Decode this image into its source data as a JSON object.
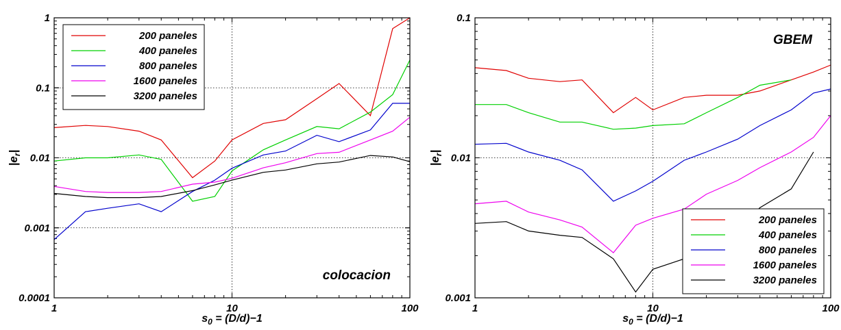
{
  "chart_data": [
    {
      "type": "line",
      "xscale": "log",
      "yscale": "log",
      "xlim": [
        1,
        100
      ],
      "ylim": [
        0.0001,
        1
      ],
      "xlabel": "s",
      "xlabel_sub": "0",
      "xlabel_rest": " = (D/d)−1",
      "ylabel": "|e",
      "ylabel_sub": "r",
      "ylabel_end": "|",
      "x_ticks": [
        "1",
        "10",
        "100"
      ],
      "y_ticks": [
        "0.0001",
        "0.001",
        "0.01",
        "0.1",
        "1"
      ],
      "grid": "dotted at decades",
      "legend_position": "top-left",
      "annotation": "colocacion",
      "x": [
        1,
        1.5,
        2,
        3,
        4,
        6,
        8,
        10,
        15,
        20,
        30,
        40,
        60,
        80,
        100
      ],
      "series": [
        {
          "name": "200 paneles",
          "color": "#e00000",
          "values": [
            0.027,
            0.029,
            0.028,
            0.024,
            0.018,
            0.0052,
            0.009,
            0.018,
            0.031,
            0.035,
            0.07,
            0.115,
            0.04,
            0.7,
            1.0
          ]
        },
        {
          "name": "400 paneles",
          "color": "#00d000",
          "values": [
            0.009,
            0.01,
            0.01,
            0.011,
            0.0095,
            0.0024,
            0.0028,
            0.0065,
            0.013,
            0.018,
            0.028,
            0.026,
            0.045,
            0.08,
            0.25
          ]
        },
        {
          "name": "800 paneles",
          "color": "#0000cc",
          "values": [
            0.00068,
            0.0017,
            0.0019,
            0.0022,
            0.0017,
            0.0033,
            0.0048,
            0.0071,
            0.011,
            0.0125,
            0.021,
            0.017,
            0.025,
            0.06,
            0.06
          ]
        },
        {
          "name": "1600 paneles",
          "color": "#ee00ee",
          "values": [
            0.0039,
            0.0033,
            0.0032,
            0.0032,
            0.0033,
            0.0042,
            0.0045,
            0.0051,
            0.0072,
            0.0085,
            0.0115,
            0.012,
            0.018,
            0.024,
            0.038
          ]
        },
        {
          "name": "3200 paneles",
          "color": "#000000",
          "values": [
            0.0031,
            0.0028,
            0.0027,
            0.0027,
            0.0028,
            0.0034,
            0.0041,
            0.0048,
            0.0062,
            0.0067,
            0.0082,
            0.0087,
            0.0108,
            0.0103,
            0.0088
          ]
        }
      ]
    },
    {
      "type": "line",
      "xscale": "log",
      "yscale": "log",
      "xlim": [
        1,
        100
      ],
      "ylim": [
        0.001,
        0.1
      ],
      "xlabel": "s",
      "xlabel_sub": "0",
      "xlabel_rest": " = (D/d)−1",
      "ylabel": "|e",
      "ylabel_sub": "r",
      "ylabel_end": "|",
      "x_ticks": [
        "1",
        "10",
        "100"
      ],
      "y_ticks": [
        "0.001",
        "0.01",
        "0.1"
      ],
      "grid": "dotted at decades",
      "legend_position": "bottom-right",
      "annotation": "GBEM",
      "series": [
        {
          "name": "200 paneles",
          "color": "#e00000",
          "x": [
            1,
            1.5,
            2,
            3,
            4,
            6,
            8,
            10,
            15,
            20,
            30,
            40,
            60,
            80,
            100
          ],
          "values": [
            0.044,
            0.042,
            0.037,
            0.035,
            0.036,
            0.021,
            0.027,
            0.022,
            0.027,
            0.028,
            0.028,
            0.03,
            0.036,
            0.041,
            0.046
          ]
        },
        {
          "name": "400 paneles",
          "color": "#00d000",
          "x": [
            1,
            1.5,
            2,
            3,
            4,
            6,
            8,
            10,
            15,
            20,
            30,
            40,
            60
          ],
          "values": [
            0.024,
            0.024,
            0.021,
            0.018,
            0.018,
            0.016,
            0.0163,
            0.017,
            0.0175,
            0.021,
            0.027,
            0.033,
            0.036
          ]
        },
        {
          "name": "800 paneles",
          "color": "#0000cc",
          "x": [
            1,
            1.5,
            2,
            3,
            4,
            6,
            8,
            10,
            15,
            20,
            30,
            40,
            60,
            80,
            100
          ],
          "values": [
            0.0125,
            0.0127,
            0.011,
            0.0096,
            0.0082,
            0.0049,
            0.0058,
            0.0068,
            0.0096,
            0.011,
            0.0136,
            0.017,
            0.022,
            0.029,
            0.031
          ]
        },
        {
          "name": "1600 paneles",
          "color": "#ee00ee",
          "x": [
            1,
            1.5,
            2,
            3,
            4,
            6,
            8,
            10,
            15,
            20,
            30,
            40,
            60,
            80,
            100
          ],
          "values": [
            0.0047,
            0.0049,
            0.0041,
            0.0036,
            0.0032,
            0.0021,
            0.0033,
            0.0037,
            0.0043,
            0.0055,
            0.0069,
            0.0085,
            0.011,
            0.014,
            0.02
          ]
        },
        {
          "name": "3200 paneles",
          "color": "#000000",
          "x": [
            1,
            1.5,
            2,
            3,
            4,
            6,
            8,
            10,
            15,
            20,
            30,
            40,
            60,
            80
          ],
          "values": [
            0.0034,
            0.0035,
            0.003,
            0.0028,
            0.0027,
            0.0019,
            0.0011,
            0.0016,
            0.0019,
            0.0021,
            0.0031,
            0.0044,
            0.006,
            0.011
          ]
        }
      ]
    }
  ]
}
